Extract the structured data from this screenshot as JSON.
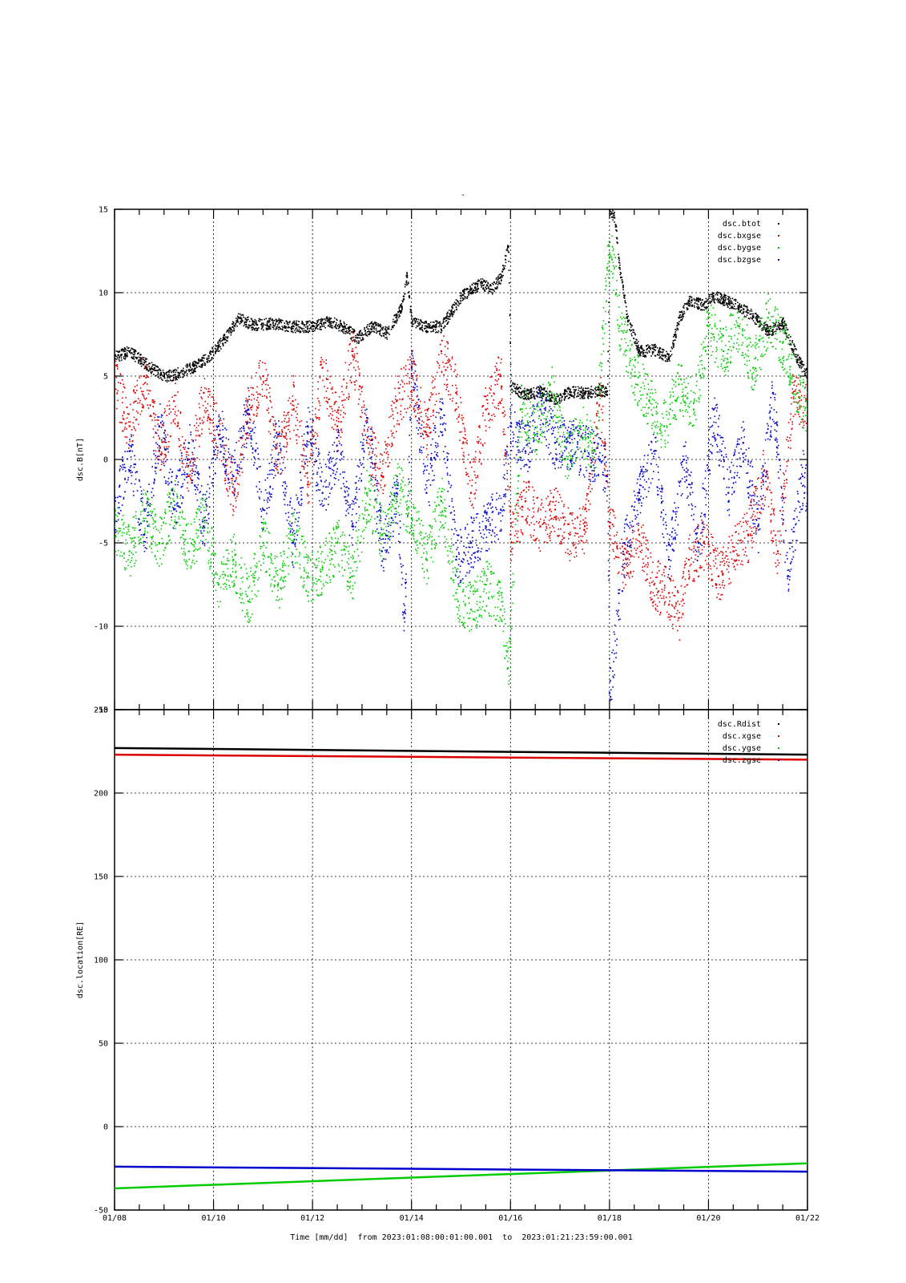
{
  "figure": {
    "title_mark": "-",
    "xlabel": "Time [mm/dd]  from 2023:01:08:00:01:00.001  to  2023:01:21:23:59:00.001"
  },
  "chart_data": [
    {
      "type": "scatter",
      "ylabel": "dsc.B[nT]",
      "ylim": [
        -15,
        15
      ],
      "yticks": [
        -15,
        -10,
        -5,
        0,
        5,
        10,
        15
      ],
      "xlim": [
        8,
        22
      ],
      "xticks": [
        {
          "x": 8,
          "label": "01/08"
        },
        {
          "x": 10,
          "label": "01/10"
        },
        {
          "x": 12,
          "label": "01/12"
        },
        {
          "x": 14,
          "label": "01/14"
        },
        {
          "x": 16,
          "label": "01/16"
        },
        {
          "x": 18,
          "label": "01/18"
        },
        {
          "x": 20,
          "label": "01/20"
        },
        {
          "x": 22,
          "label": "01/22"
        }
      ],
      "grid": true,
      "legend_position": "top-right",
      "series": [
        {
          "name": "dsc.btot",
          "color": "#000000",
          "x": [
            8.0,
            8.3,
            8.6,
            9.0,
            9.3,
            9.6,
            9.9,
            10.2,
            10.5,
            10.8,
            11.2,
            11.6,
            12.0,
            12.3,
            12.6,
            12.9,
            13.2,
            13.5,
            13.8,
            13.9,
            14.0,
            14.3,
            14.6,
            14.8,
            15.0,
            15.2,
            15.4,
            15.6,
            15.8,
            15.95,
            16.0,
            16.3,
            16.6,
            16.9,
            17.2,
            17.5,
            17.8,
            17.95,
            18.0,
            18.1,
            18.2,
            18.35,
            18.6,
            18.9,
            19.2,
            19.4,
            19.6,
            19.9,
            20.1,
            20.3,
            20.6,
            20.9,
            21.2,
            21.5,
            21.8,
            22.0
          ],
          "y": [
            6.2,
            6.5,
            5.8,
            5.0,
            5.2,
            5.6,
            6.2,
            7.2,
            8.5,
            8.1,
            8.2,
            8.0,
            8.0,
            8.3,
            8.0,
            7.3,
            8.0,
            7.6,
            9.2,
            11.0,
            8.2,
            8.0,
            8.0,
            8.9,
            9.8,
            10.2,
            10.6,
            10.2,
            10.9,
            12.8,
            4.4,
            3.9,
            4.1,
            3.6,
            4.1,
            4.0,
            4.2,
            4.1,
            15.0,
            14.5,
            11.5,
            8.5,
            6.5,
            6.6,
            6.1,
            8.5,
            9.5,
            9.3,
            9.8,
            9.6,
            9.2,
            8.6,
            7.7,
            8.2,
            6.0,
            5.0
          ]
        },
        {
          "name": "dsc.bxgse",
          "color": "#dd0000",
          "x": [
            8.0,
            8.3,
            8.6,
            8.9,
            9.2,
            9.5,
            9.8,
            10.1,
            10.4,
            10.7,
            11.0,
            11.3,
            11.6,
            11.9,
            12.2,
            12.5,
            12.8,
            13.1,
            13.4,
            13.7,
            14.0,
            14.3,
            14.6,
            14.9,
            15.2,
            15.5,
            15.8,
            16.0,
            16.3,
            16.6,
            16.9,
            17.2,
            17.5,
            17.8,
            18.0,
            18.3,
            18.6,
            18.9,
            19.2,
            19.4,
            19.6,
            19.9,
            20.2,
            20.5,
            20.8,
            21.1,
            21.4,
            21.7,
            22.0
          ],
          "y": [
            4.5,
            2.0,
            5.0,
            0.5,
            3.5,
            -1.0,
            4.0,
            1.5,
            -2.0,
            3.0,
            5.0,
            0.0,
            3.5,
            -1.5,
            5.5,
            2.0,
            6.5,
            1.0,
            -1.0,
            3.5,
            5.0,
            1.5,
            6.5,
            4.0,
            -2.0,
            3.0,
            5.0,
            -4.5,
            -2.5,
            -4.0,
            -3.0,
            -4.5,
            -4.0,
            4.0,
            -4.0,
            -6.5,
            -4.5,
            -7.5,
            -8.0,
            -9.5,
            -6.0,
            -5.0,
            -7.0,
            -5.5,
            -4.5,
            -1.0,
            -5.5,
            4.0,
            3.0
          ]
        },
        {
          "name": "dsc.bygse",
          "color": "#00cc00",
          "x": [
            8.0,
            8.3,
            8.6,
            8.9,
            9.2,
            9.5,
            9.8,
            10.1,
            10.4,
            10.7,
            11.0,
            11.3,
            11.6,
            11.9,
            12.2,
            12.5,
            12.8,
            13.1,
            13.4,
            13.7,
            14.0,
            14.3,
            14.6,
            14.9,
            15.2,
            15.5,
            15.8,
            15.95,
            16.2,
            16.5,
            16.8,
            17.1,
            17.4,
            17.7,
            17.95,
            18.05,
            18.2,
            18.5,
            18.8,
            19.1,
            19.4,
            19.7,
            20.0,
            20.3,
            20.6,
            20.9,
            21.2,
            21.5,
            21.8,
            22.0
          ],
          "y": [
            -4.0,
            -5.5,
            -3.0,
            -5.0,
            -2.5,
            -5.5,
            -3.5,
            -7.5,
            -6.0,
            -8.5,
            -5.0,
            -7.5,
            -4.5,
            -7.0,
            -6.5,
            -5.0,
            -7.0,
            -2.0,
            -4.5,
            -1.5,
            -3.5,
            -6.0,
            -2.5,
            -8.0,
            -9.0,
            -7.5,
            -9.0,
            -12.5,
            3.0,
            1.5,
            4.5,
            0.0,
            2.0,
            0.5,
            11.5,
            12.0,
            8.0,
            5.0,
            3.5,
            2.0,
            4.5,
            3.0,
            8.0,
            6.5,
            8.0,
            5.5,
            8.5,
            7.0,
            4.0,
            3.0
          ]
        },
        {
          "name": "dsc.bzgse",
          "color": "#0000cc",
          "x": [
            8.0,
            8.3,
            8.6,
            8.9,
            9.2,
            9.5,
            9.8,
            10.1,
            10.4,
            10.7,
            11.0,
            11.3,
            11.6,
            11.9,
            12.2,
            12.5,
            12.8,
            13.1,
            13.4,
            13.7,
            13.85,
            14.0,
            14.3,
            14.6,
            14.9,
            15.2,
            15.5,
            15.8,
            16.0,
            16.3,
            16.6,
            16.9,
            17.2,
            17.5,
            17.8,
            17.95,
            18.0,
            18.3,
            18.6,
            18.9,
            19.2,
            19.5,
            19.8,
            20.1,
            20.4,
            20.7,
            21.0,
            21.3,
            21.6,
            21.9,
            22.0
          ],
          "y": [
            -3.0,
            0.5,
            -4.5,
            2.0,
            -3.0,
            1.0,
            -4.0,
            2.0,
            -1.0,
            3.0,
            -3.0,
            1.5,
            -5.0,
            2.0,
            -2.0,
            0.5,
            -4.0,
            2.5,
            -5.5,
            -2.0,
            -9.5,
            5.5,
            -2.0,
            3.0,
            -6.0,
            -5.0,
            -4.0,
            -3.0,
            2.0,
            0.5,
            3.0,
            1.0,
            1.0,
            0.5,
            0.0,
            -1.0,
            -14.0,
            -5.0,
            -2.0,
            0.5,
            -6.0,
            0.0,
            -5.0,
            3.0,
            -2.0,
            1.0,
            -4.0,
            4.0,
            -7.0,
            -1.0,
            -2.0
          ]
        }
      ]
    },
    {
      "type": "line",
      "ylabel": "dsc.location[RE]",
      "ylim": [
        -50,
        250
      ],
      "yticks": [
        -50,
        0,
        50,
        100,
        150,
        200,
        250
      ],
      "xlim": [
        8,
        22
      ],
      "xticks": [
        {
          "x": 8,
          "label": "01/08"
        },
        {
          "x": 10,
          "label": "01/10"
        },
        {
          "x": 12,
          "label": "01/12"
        },
        {
          "x": 14,
          "label": "01/14"
        },
        {
          "x": 16,
          "label": "01/16"
        },
        {
          "x": 18,
          "label": "01/18"
        },
        {
          "x": 20,
          "label": "01/20"
        },
        {
          "x": 22,
          "label": "01/22"
        }
      ],
      "grid": true,
      "legend_position": "top-right",
      "series": [
        {
          "name": "dsc.Rdist",
          "color": "#000000",
          "x": [
            8,
            22
          ],
          "y": [
            227,
            223
          ]
        },
        {
          "name": "dsc.xgse",
          "color": "#dd0000",
          "x": [
            8,
            22
          ],
          "y": [
            223,
            220
          ]
        },
        {
          "name": "dsc.ygse",
          "color": "#00cc00",
          "x": [
            8,
            22
          ],
          "y": [
            -37,
            -22
          ]
        },
        {
          "name": "dsc.zgse",
          "color": "#0000cc",
          "x": [
            8,
            22
          ],
          "y": [
            -24,
            -27
          ]
        }
      ]
    }
  ]
}
